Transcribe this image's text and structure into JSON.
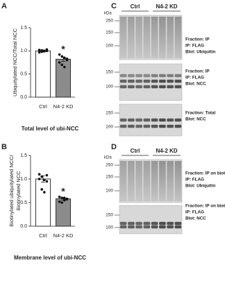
{
  "chart_data": [
    {
      "type": "bar",
      "panel_label": "A",
      "title": "Total level of ubi-NCC",
      "y_label": [
        "Ubiquitylated NCC/Total NCC"
      ],
      "categories": [
        "Ctrl",
        "N4-2 KD"
      ],
      "values": [
        1.0,
        0.82
      ],
      "errors": [
        0.02,
        0.05
      ],
      "points": [
        [
          1.02,
          0.98,
          1.0,
          1.03,
          0.97,
          1.01,
          0.99,
          1.0
        ],
        [
          0.92,
          0.88,
          0.85,
          0.8,
          0.75,
          0.7,
          0.65,
          0.83
        ]
      ],
      "significance": [
        null,
        "*"
      ],
      "colors": [
        "#ffffff",
        "#8c8c8c"
      ],
      "ylim": [
        0,
        1.5
      ],
      "yticks": [
        {
          "value": 0,
          "label": "0.0"
        },
        {
          "value": 0.5,
          "label": "0.5"
        },
        {
          "value": 1,
          "label": "1.0"
        },
        {
          "value": 1.5,
          "label": "1.5"
        }
      ]
    },
    {
      "type": "bar",
      "panel_label": "B",
      "title": "Membrane level of ubi-NCC",
      "y_label": [
        "Biotinylated ubiquitylated NCC/",
        "Biotinylated NCC"
      ],
      "categories": [
        "Ctrl",
        "N4-2 KD"
      ],
      "values": [
        1.0,
        0.58
      ],
      "errors": [
        0.07,
        0.03
      ],
      "points": [
        [
          1.1,
          1.05,
          0.98,
          0.95,
          1.0,
          0.78,
          0.72,
          1.08
        ],
        [
          0.62,
          0.6,
          0.55,
          0.58,
          0.52,
          0.5,
          0.6,
          0.57
        ]
      ],
      "significance": [
        null,
        "*"
      ],
      "colors": [
        "#ffffff",
        "#8c8c8c"
      ],
      "ylim": [
        0,
        1.5
      ],
      "yticks": [
        {
          "value": 0,
          "label": "0.0"
        },
        {
          "value": 0.5,
          "label": "0.5"
        },
        {
          "value": 1,
          "label": "1.0"
        },
        {
          "value": 1.5,
          "label": "1.5"
        }
      ]
    }
  ],
  "blots": [
    {
      "panel_label": "C",
      "groups": [
        "Ctrl",
        "N4-2 KD"
      ],
      "unit": "kDa",
      "strips": [
        {
          "markers": [
            "250",
            "150",
            "100"
          ],
          "labels": [
            "Fraction: IP",
            "IP: FLAG",
            "Blot: Ubiquitin"
          ]
        },
        {
          "markers": [
            "150",
            "100"
          ],
          "labels": [
            "Fraction: IP",
            "IP: FLAG",
            "Blot: NCC"
          ]
        },
        {
          "markers": [
            "150",
            "100"
          ],
          "labels": [
            "Fraction: Total",
            "Blot: NCC"
          ]
        }
      ]
    },
    {
      "panel_label": "D",
      "groups": [
        "Ctrl",
        "N4-2 KD"
      ],
      "unit": "kDa",
      "strips": [
        {
          "markers": [
            "250",
            "150",
            "100"
          ],
          "labels": [
            "Fraction: IP on biotinylate",
            "IP: FLAG",
            "Blot: Ubiquitin"
          ]
        },
        {
          "markers": [
            "150",
            "100"
          ],
          "labels": [
            "Fraction: IP on biotinylate",
            "IP: FLAG",
            "Blot: NCC"
          ]
        }
      ]
    }
  ]
}
